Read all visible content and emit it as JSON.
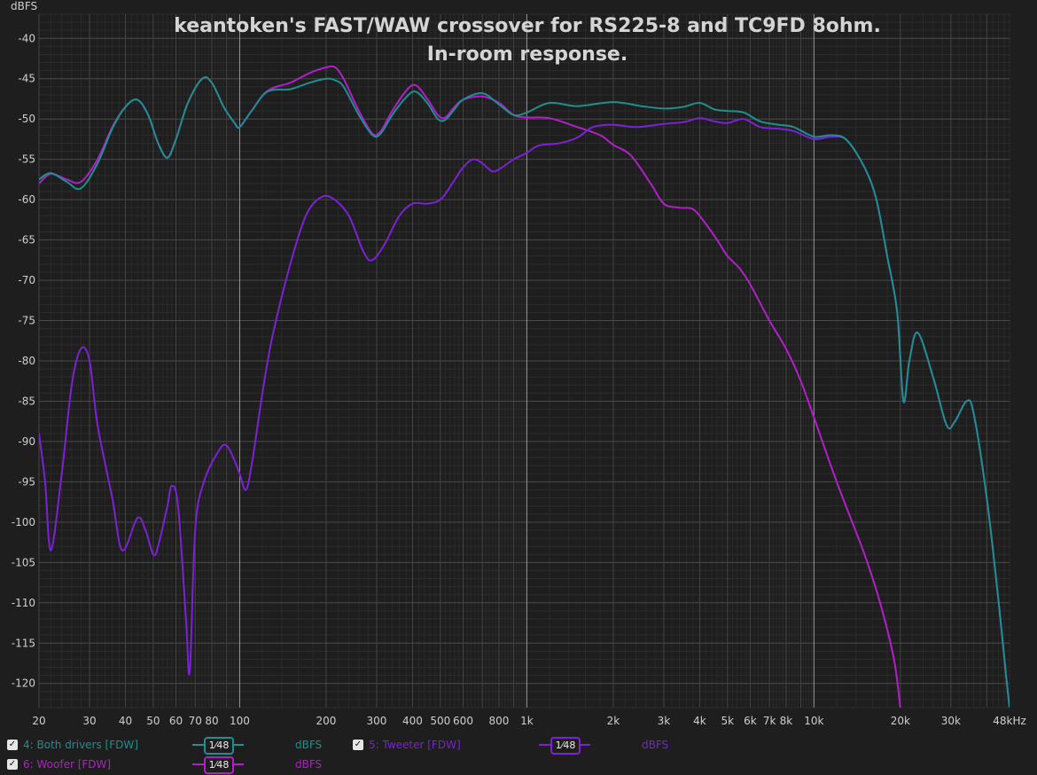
{
  "chart_data": {
    "type": "line",
    "title": "keantoken's FAST/WAW crossover for RS225-8 and TC9FD 8ohm.",
    "subtitle": "In-room response.",
    "ylabel": "dBFS",
    "xlabel": "",
    "x_scale": "log",
    "xlim": [
      20,
      48000
    ],
    "ylim": [
      -123,
      -37
    ],
    "grid": true,
    "x_tick_labels": [
      {
        "v": 20,
        "t": "20"
      },
      {
        "v": 30,
        "t": "30"
      },
      {
        "v": 40,
        "t": "40"
      },
      {
        "v": 50,
        "t": "50"
      },
      {
        "v": 60,
        "t": "60"
      },
      {
        "v": 70,
        "t": "70"
      },
      {
        "v": 80,
        "t": "80"
      },
      {
        "v": 100,
        "t": "100"
      },
      {
        "v": 200,
        "t": "200"
      },
      {
        "v": 300,
        "t": "300"
      },
      {
        "v": 400,
        "t": "400"
      },
      {
        "v": 500,
        "t": "500"
      },
      {
        "v": 600,
        "t": "600"
      },
      {
        "v": 800,
        "t": "800"
      },
      {
        "v": 1000,
        "t": "1k"
      },
      {
        "v": 2000,
        "t": "2k"
      },
      {
        "v": 3000,
        "t": "3k"
      },
      {
        "v": 4000,
        "t": "4k"
      },
      {
        "v": 5000,
        "t": "5k"
      },
      {
        "v": 6000,
        "t": "6k"
      },
      {
        "v": 7000,
        "t": "7k"
      },
      {
        "v": 8000,
        "t": "8k"
      },
      {
        "v": 10000,
        "t": "10k"
      },
      {
        "v": 20000,
        "t": "20k"
      },
      {
        "v": 30000,
        "t": "30k"
      },
      {
        "v": 48000,
        "t": "48kHz"
      }
    ],
    "y_ticks": [
      -40,
      -45,
      -50,
      -55,
      -60,
      -65,
      -70,
      -75,
      -80,
      -85,
      -90,
      -95,
      -100,
      -105,
      -110,
      -115,
      -120
    ],
    "series": [
      {
        "name": "6: Woofer [FDW]",
        "color": "#b21fc9",
        "points": [
          [
            20,
            -58
          ],
          [
            22,
            -56.8
          ],
          [
            25,
            -57.5
          ],
          [
            28,
            -57.8
          ],
          [
            32,
            -55
          ],
          [
            36,
            -51
          ],
          [
            40,
            -48.5
          ],
          [
            44,
            -47.6
          ],
          [
            48,
            -49.5
          ],
          [
            52,
            -53
          ],
          [
            56,
            -54.8
          ],
          [
            60,
            -52.5
          ],
          [
            66,
            -48
          ],
          [
            74,
            -45
          ],
          [
            80,
            -45.5
          ],
          [
            88,
            -48.5
          ],
          [
            96,
            -50.5
          ],
          [
            100,
            -51
          ],
          [
            110,
            -49
          ],
          [
            125,
            -46.5
          ],
          [
            150,
            -45.5
          ],
          [
            175,
            -44.3
          ],
          [
            200,
            -43.6
          ],
          [
            215,
            -43.6
          ],
          [
            230,
            -45
          ],
          [
            260,
            -49
          ],
          [
            290,
            -51.8
          ],
          [
            310,
            -51.5
          ],
          [
            340,
            -49
          ],
          [
            380,
            -46.5
          ],
          [
            410,
            -45.8
          ],
          [
            450,
            -47.5
          ],
          [
            490,
            -49.5
          ],
          [
            520,
            -49.8
          ],
          [
            560,
            -48.5
          ],
          [
            600,
            -47.6
          ],
          [
            700,
            -47.2
          ],
          [
            800,
            -48
          ],
          [
            900,
            -49.5
          ],
          [
            1000,
            -49.8
          ],
          [
            1200,
            -49.9
          ],
          [
            1500,
            -51
          ],
          [
            1800,
            -52
          ],
          [
            2000,
            -53.2
          ],
          [
            2300,
            -54.5
          ],
          [
            2700,
            -58
          ],
          [
            3000,
            -60.5
          ],
          [
            3400,
            -61
          ],
          [
            3800,
            -61.2
          ],
          [
            4200,
            -63
          ],
          [
            4600,
            -65
          ],
          [
            5000,
            -67
          ],
          [
            5500,
            -68.5
          ],
          [
            6000,
            -70.5
          ],
          [
            7000,
            -75
          ],
          [
            8000,
            -78.5
          ],
          [
            9000,
            -82.5
          ],
          [
            10000,
            -87
          ],
          [
            12000,
            -95
          ],
          [
            15000,
            -104
          ],
          [
            17000,
            -110
          ],
          [
            19000,
            -117
          ],
          [
            20000,
            -123
          ]
        ]
      },
      {
        "name": "5: Tweeter [FDW]",
        "color": "#7b22d4",
        "points": [
          [
            20,
            -89
          ],
          [
            21,
            -95
          ],
          [
            22,
            -103.5
          ],
          [
            24,
            -94
          ],
          [
            26,
            -83
          ],
          [
            28,
            -78.5
          ],
          [
            30,
            -80
          ],
          [
            32,
            -88
          ],
          [
            36,
            -97
          ],
          [
            39,
            -103.5
          ],
          [
            44,
            -99.5
          ],
          [
            47,
            -101
          ],
          [
            50,
            -104
          ],
          [
            52,
            -103
          ],
          [
            56,
            -98
          ],
          [
            58,
            -95.5
          ],
          [
            61,
            -98
          ],
          [
            65,
            -112
          ],
          [
            67,
            -118.5
          ],
          [
            70,
            -101
          ],
          [
            75,
            -95
          ],
          [
            85,
            -91
          ],
          [
            90,
            -90.5
          ],
          [
            95,
            -92
          ],
          [
            100,
            -94
          ],
          [
            105,
            -96
          ],
          [
            110,
            -93
          ],
          [
            120,
            -84
          ],
          [
            130,
            -77
          ],
          [
            150,
            -68
          ],
          [
            170,
            -62
          ],
          [
            190,
            -59.8
          ],
          [
            210,
            -59.8
          ],
          [
            240,
            -62
          ],
          [
            270,
            -66.5
          ],
          [
            290,
            -67.5
          ],
          [
            320,
            -65.5
          ],
          [
            360,
            -62
          ],
          [
            400,
            -60.5
          ],
          [
            450,
            -60.5
          ],
          [
            500,
            -60
          ],
          [
            550,
            -58
          ],
          [
            600,
            -56
          ],
          [
            650,
            -55
          ],
          [
            700,
            -55.5
          ],
          [
            760,
            -56.5
          ],
          [
            820,
            -56
          ],
          [
            900,
            -55
          ],
          [
            1000,
            -54.2
          ],
          [
            1100,
            -53.3
          ],
          [
            1300,
            -53
          ],
          [
            1500,
            -52.3
          ],
          [
            1700,
            -51
          ],
          [
            2000,
            -50.7
          ],
          [
            2400,
            -51
          ],
          [
            3000,
            -50.6
          ],
          [
            3500,
            -50.4
          ],
          [
            4000,
            -49.9
          ],
          [
            4500,
            -50.3
          ],
          [
            5000,
            -50.5
          ],
          [
            5700,
            -50
          ],
          [
            6500,
            -51
          ],
          [
            7500,
            -51.2
          ],
          [
            8500,
            -51.5
          ],
          [
            10000,
            -52.5
          ],
          [
            11500,
            -52.2
          ],
          [
            13000,
            -52.6
          ],
          [
            15000,
            -56
          ],
          [
            16500,
            -60
          ],
          [
            18000,
            -67
          ],
          [
            19500,
            -74
          ],
          [
            20500,
            -85
          ],
          [
            21500,
            -80
          ],
          [
            23000,
            -76.5
          ],
          [
            26000,
            -82
          ],
          [
            29000,
            -88
          ],
          [
            31000,
            -87.5
          ],
          [
            34000,
            -85
          ],
          [
            36000,
            -86.5
          ],
          [
            40000,
            -97
          ],
          [
            44000,
            -110
          ],
          [
            47000,
            -120
          ],
          [
            48000,
            -123
          ]
        ]
      },
      {
        "name": "4: Both drivers [FDW]",
        "color": "#1f8f8f",
        "points": [
          [
            20,
            -57.5
          ],
          [
            22,
            -56.7
          ],
          [
            25,
            -57.8
          ],
          [
            28,
            -58.6
          ],
          [
            32,
            -55.5
          ],
          [
            36,
            -51.2
          ],
          [
            40,
            -48.5
          ],
          [
            44,
            -47.6
          ],
          [
            48,
            -49.5
          ],
          [
            52,
            -53
          ],
          [
            56,
            -54.8
          ],
          [
            60,
            -52.5
          ],
          [
            66,
            -48
          ],
          [
            74,
            -45
          ],
          [
            80,
            -45.5
          ],
          [
            88,
            -48.5
          ],
          [
            96,
            -50.5
          ],
          [
            100,
            -51
          ],
          [
            110,
            -49
          ],
          [
            125,
            -46.6
          ],
          [
            150,
            -46.3
          ],
          [
            175,
            -45.5
          ],
          [
            200,
            -45
          ],
          [
            215,
            -45.2
          ],
          [
            230,
            -46
          ],
          [
            260,
            -49.5
          ],
          [
            290,
            -52
          ],
          [
            310,
            -51.8
          ],
          [
            340,
            -49.5
          ],
          [
            380,
            -47.3
          ],
          [
            410,
            -46.6
          ],
          [
            450,
            -48
          ],
          [
            490,
            -50
          ],
          [
            520,
            -50.1
          ],
          [
            560,
            -48.8
          ],
          [
            600,
            -47.6
          ],
          [
            700,
            -46.8
          ],
          [
            800,
            -48.2
          ],
          [
            900,
            -49.5
          ],
          [
            1000,
            -49.2
          ],
          [
            1200,
            -48
          ],
          [
            1500,
            -48.4
          ],
          [
            2000,
            -47.9
          ],
          [
            2500,
            -48.4
          ],
          [
            3000,
            -48.7
          ],
          [
            3500,
            -48.5
          ],
          [
            4000,
            -48
          ],
          [
            4500,
            -48.8
          ],
          [
            5000,
            -49
          ],
          [
            5700,
            -49.2
          ],
          [
            6500,
            -50.3
          ],
          [
            7500,
            -50.7
          ],
          [
            8500,
            -51
          ],
          [
            10000,
            -52.2
          ],
          [
            11500,
            -52
          ],
          [
            13000,
            -52.6
          ],
          [
            15000,
            -56
          ],
          [
            16500,
            -60
          ],
          [
            18000,
            -67
          ],
          [
            19500,
            -74
          ],
          [
            20500,
            -85
          ],
          [
            21500,
            -80
          ],
          [
            23000,
            -76.5
          ],
          [
            26000,
            -82
          ],
          [
            29000,
            -88
          ],
          [
            31000,
            -87.5
          ],
          [
            34000,
            -85
          ],
          [
            36000,
            -86.5
          ],
          [
            40000,
            -97
          ],
          [
            44000,
            -110
          ],
          [
            47000,
            -120
          ],
          [
            48000,
            -123
          ]
        ]
      }
    ]
  },
  "legend": [
    {
      "name": "4: Both drivers [FDW]",
      "color": "#1f8f8f",
      "smoothing": "1⁄48",
      "unit": "dBFS"
    },
    {
      "name": "5: Tweeter [FDW]",
      "color": "#7b22d4",
      "smoothing": "1⁄48",
      "unit": "dBFS"
    },
    {
      "name": "6: Woofer [FDW]",
      "color": "#b21fc9",
      "smoothing": "1⁄48",
      "unit": "dBFS"
    }
  ]
}
